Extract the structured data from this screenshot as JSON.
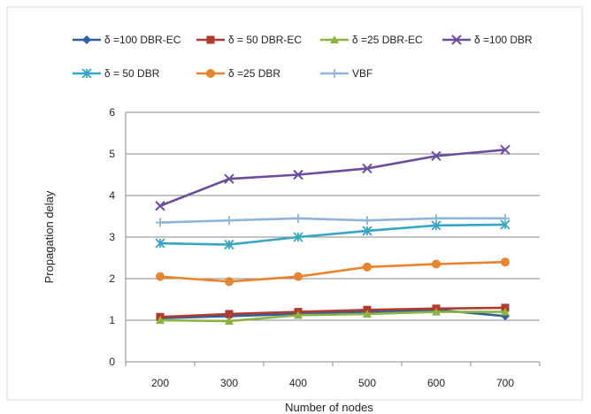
{
  "chart_data": {
    "type": "line",
    "title": "",
    "xlabel": "Number of nodes",
    "ylabel": "Propagation delay",
    "x": [
      200,
      300,
      400,
      500,
      600,
      700
    ],
    "xticks": [
      "200",
      "300",
      "400",
      "500",
      "600",
      "700"
    ],
    "yticks": [
      "0",
      "1",
      "2",
      "3",
      "4",
      "5",
      "6"
    ],
    "ylim": [
      0,
      6
    ],
    "grid": "horizontal",
    "legend_position": "top",
    "series": [
      {
        "name": "δ =100 DBR-EC",
        "color": "#2f5f9e",
        "marker": "diamond",
        "values": [
          1.05,
          1.1,
          1.15,
          1.2,
          1.25,
          1.1
        ]
      },
      {
        "name": "δ = 50 DBR-EC",
        "color": "#b03a2e",
        "marker": "square",
        "values": [
          1.08,
          1.15,
          1.2,
          1.25,
          1.28,
          1.3
        ]
      },
      {
        "name": "δ =25 DBR-EC",
        "color": "#8ab33f",
        "marker": "triangle",
        "values": [
          1.0,
          0.98,
          1.12,
          1.15,
          1.2,
          1.2
        ]
      },
      {
        "name": "δ =100 DBR",
        "color": "#6d4c9e",
        "marker": "x",
        "values": [
          3.75,
          4.4,
          4.5,
          4.65,
          4.95,
          5.1
        ]
      },
      {
        "name": "δ = 50 DBR",
        "color": "#35a7c4",
        "marker": "star",
        "values": [
          2.85,
          2.82,
          3.0,
          3.15,
          3.28,
          3.3
        ]
      },
      {
        "name": "δ =25 DBR",
        "color": "#e8832e",
        "marker": "circle",
        "values": [
          2.05,
          1.93,
          2.05,
          2.28,
          2.35,
          2.4
        ]
      },
      {
        "name": "VBF",
        "color": "#8fb3d9",
        "marker": "plus",
        "values": [
          3.35,
          3.4,
          3.45,
          3.4,
          3.45,
          3.45
        ]
      }
    ]
  }
}
